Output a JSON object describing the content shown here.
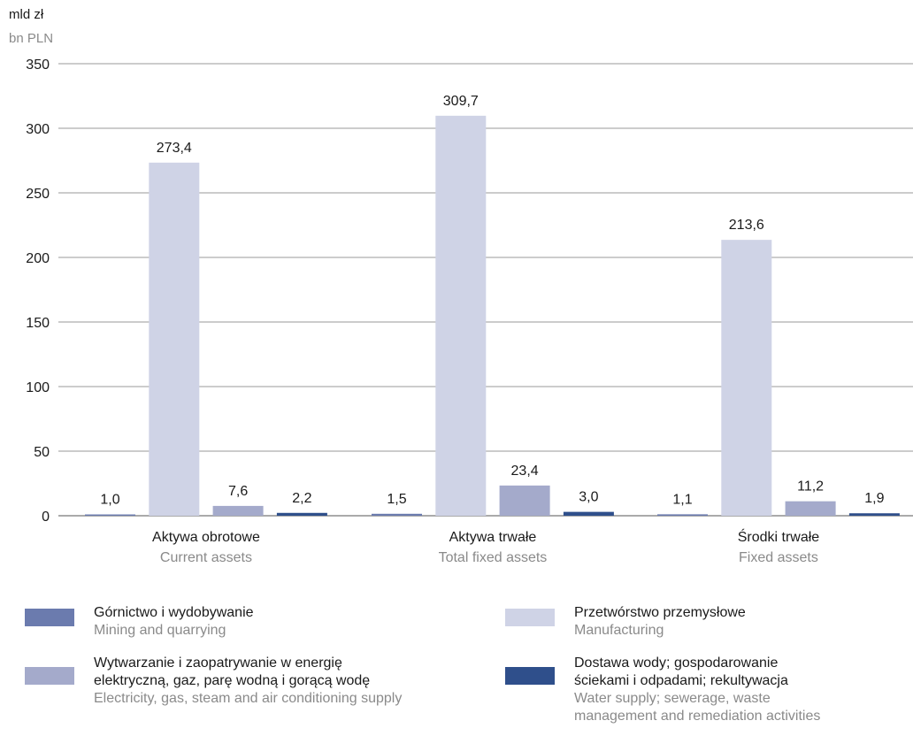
{
  "unit": {
    "pl": "mld zł",
    "en": "bn PLN"
  },
  "chart_data": {
    "type": "bar",
    "ylim": [
      0,
      350
    ],
    "yticks": [
      0,
      50,
      100,
      150,
      200,
      250,
      300,
      350
    ],
    "grid": true,
    "legend_position": "bottom",
    "categories": [
      {
        "pl": "Aktywa obrotowe",
        "en": "Current assets"
      },
      {
        "pl": "Aktywa trwałe",
        "en": "Total fixed assets"
      },
      {
        "pl": "Środki trwałe",
        "en": "Fixed assets"
      }
    ],
    "series": [
      {
        "name_pl": "Górnictwo i wydobywanie",
        "name_en": "Mining and quarrying",
        "color": "#6b7bae",
        "values": [
          1.0,
          1.5,
          1.1
        ],
        "labels": [
          "1,0",
          "1,5",
          "1,1"
        ]
      },
      {
        "name_pl": "Przetwórstwo przemysłowe",
        "name_en": "Manufacturing",
        "color": "#cfd3e6",
        "values": [
          273.4,
          309.7,
          213.6
        ],
        "labels": [
          "273,4",
          "309,7",
          "213,6"
        ]
      },
      {
        "name_pl": "Wytwarzanie i zaopatrywanie w energię\nelektryczną, gaz, parę wodną i gorącą wodę",
        "name_en": "Electricity, gas, steam and air conditioning supply",
        "color": "#a4aacb",
        "values": [
          7.6,
          23.4,
          11.2
        ],
        "labels": [
          "7,6",
          "23,4",
          "11,2"
        ]
      },
      {
        "name_pl": "Dostawa wody; gospodarowanie\nściekami i odpadami; rekultywacja",
        "name_en": "Water supply; sewerage, waste\nmanagement and remediation activities",
        "color": "#2f4f8b",
        "values": [
          2.2,
          3.0,
          1.9
        ],
        "labels": [
          "2,2",
          "3,0",
          "1,9"
        ]
      }
    ]
  }
}
